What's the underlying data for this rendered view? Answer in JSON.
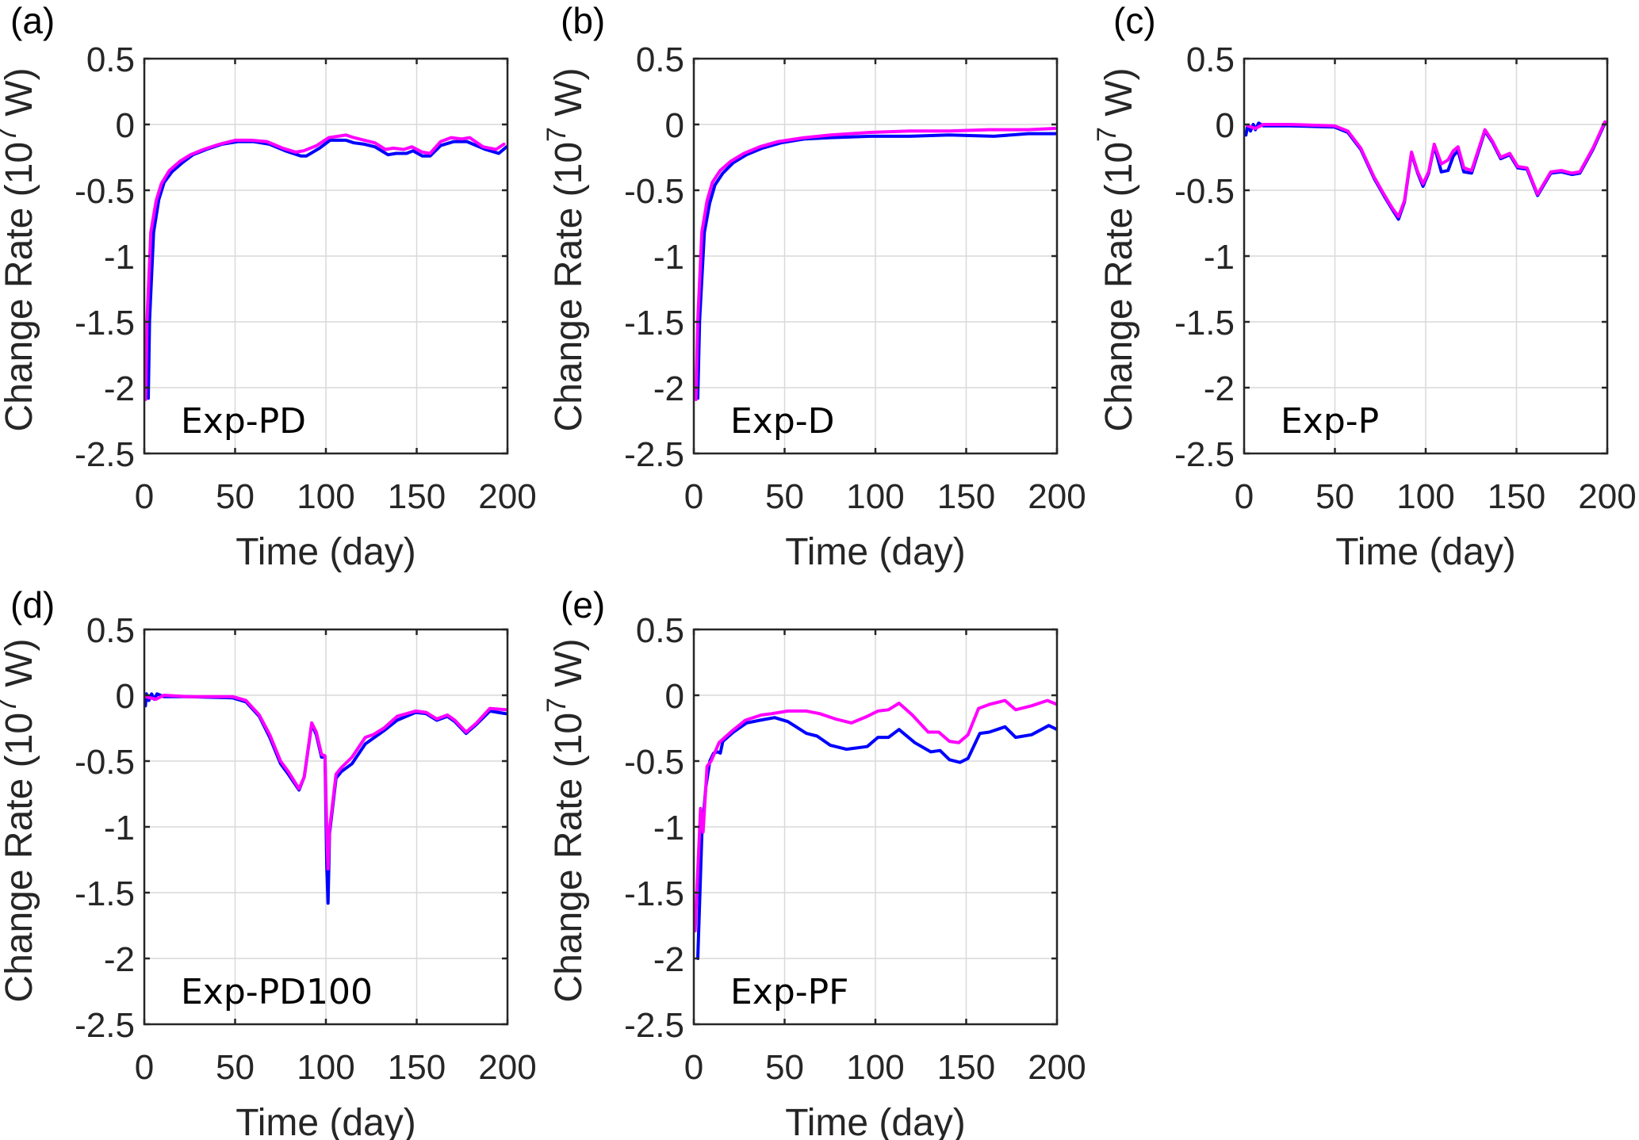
{
  "figure": {
    "panels": [
      {
        "letter": "(a)",
        "experiment": "Exp-PD"
      },
      {
        "letter": "(b)",
        "experiment": "Exp-D"
      },
      {
        "letter": "(c)",
        "experiment": "Exp-P"
      },
      {
        "letter": "(d)",
        "experiment": "Exp-PD100"
      },
      {
        "letter": "(e)",
        "experiment": "Exp-PF"
      }
    ],
    "colors": {
      "blue_series": "#0000ff",
      "magenta_series": "#ff00ff"
    }
  },
  "chart_data": [
    {
      "type": "line",
      "panel": "(a)",
      "annotation": "Exp-PD",
      "title": "",
      "xlabel": "Time (day)",
      "ylabel": "Change Rate (10^7 W)",
      "ylabel_parts": {
        "pre": "Change Rate (10",
        "sup": "7",
        "post": " W)"
      },
      "xlim": [
        0,
        200
      ],
      "ylim": [
        -2.5,
        0.5
      ],
      "xticks": [
        0,
        50,
        100,
        150,
        200
      ],
      "xtick_labels": [
        "0",
        "50",
        "100",
        "150",
        "200"
      ],
      "yticks": [
        0.5,
        0,
        -0.5,
        -1,
        -1.5,
        -2,
        -2.5
      ],
      "ytick_labels": [
        "0.5",
        "0",
        "-0.5",
        "-1",
        "-1.5",
        "-2",
        "-2.5"
      ],
      "grid": true,
      "legend": "none",
      "series": [
        {
          "name": "blue",
          "color": "#0000ff",
          "x": [
            2.2,
            2.9,
            5.1,
            8,
            10.9,
            15.2,
            21,
            26.8,
            34.1,
            42.8,
            51.5,
            60.2,
            68.9,
            77.6,
            86.3,
            89.2,
            96.5,
            102.3,
            111,
            115.4,
            121.2,
            127,
            134.2,
            138.6,
            144.4,
            148,
            153.1,
            157.4,
            163.2,
            170.5,
            177.7,
            187.9,
            195.2,
            199.5
          ],
          "y": [
            -2.08,
            -1.49,
            -0.82,
            -0.57,
            -0.44,
            -0.36,
            -0.29,
            -0.23,
            -0.19,
            -0.15,
            -0.13,
            -0.13,
            -0.15,
            -0.2,
            -0.24,
            -0.24,
            -0.18,
            -0.12,
            -0.12,
            -0.14,
            -0.15,
            -0.17,
            -0.23,
            -0.22,
            -0.22,
            -0.2,
            -0.24,
            -0.24,
            -0.16,
            -0.13,
            -0.13,
            -0.19,
            -0.22,
            -0.17
          ]
        },
        {
          "name": "magenta",
          "color": "#ff00ff",
          "x": [
            0.7,
            1.5,
            3.6,
            6.5,
            9.4,
            13.8,
            19.6,
            25.4,
            32.6,
            41.4,
            50.1,
            58.8,
            67.5,
            76.2,
            83.4,
            87.8,
            95,
            101.6,
            106.7,
            111,
            115.4,
            121.2,
            127,
            132.8,
            137.1,
            142.9,
            147.3,
            153.1,
            157.4,
            163.2,
            169,
            174.8,
            179.2,
            186.5,
            193.7,
            198
          ],
          "y": [
            -2.09,
            -1.49,
            -0.82,
            -0.58,
            -0.45,
            -0.35,
            -0.28,
            -0.23,
            -0.19,
            -0.15,
            -0.12,
            -0.12,
            -0.13,
            -0.18,
            -0.21,
            -0.2,
            -0.16,
            -0.1,
            -0.09,
            -0.08,
            -0.1,
            -0.12,
            -0.14,
            -0.19,
            -0.18,
            -0.19,
            -0.17,
            -0.21,
            -0.22,
            -0.13,
            -0.1,
            -0.11,
            -0.1,
            -0.17,
            -0.19,
            -0.15
          ]
        }
      ]
    },
    {
      "type": "line",
      "panel": "(b)",
      "annotation": "Exp-D",
      "title": "",
      "xlabel": "Time (day)",
      "ylabel": "Change Rate (10^7 W)",
      "ylabel_parts": {
        "pre": "Change Rate (10",
        "sup": "7",
        "post": " W)"
      },
      "xlim": [
        0,
        200
      ],
      "ylim": [
        -2.5,
        0.5
      ],
      "xticks": [
        0,
        50,
        100,
        150,
        200
      ],
      "xtick_labels": [
        "0",
        "50",
        "100",
        "150",
        "200"
      ],
      "yticks": [
        0.5,
        0,
        -0.5,
        -1,
        -1.5,
        -2,
        -2.5
      ],
      "ytick_labels": [
        "0.5",
        "0",
        "-0.5",
        "-1",
        "-1.5",
        "-2",
        "-2.5"
      ],
      "grid": true,
      "legend": "none",
      "series": [
        {
          "name": "blue",
          "color": "#0000ff",
          "x": [
            2.2,
            3.2,
            5.8,
            8.7,
            11.6,
            16,
            21.8,
            29,
            37.7,
            47.9,
            60.9,
            75.4,
            97.2,
            118.9,
            140.7,
            165.3,
            184.2,
            199.4
          ],
          "y": [
            -2.08,
            -1.49,
            -0.82,
            -0.6,
            -0.46,
            -0.37,
            -0.29,
            -0.23,
            -0.18,
            -0.14,
            -0.11,
            -0.1,
            -0.09,
            -0.09,
            -0.08,
            -0.09,
            -0.07,
            -0.07
          ]
        },
        {
          "name": "magenta",
          "color": "#ff00ff",
          "x": [
            1.2,
            2.2,
            4.4,
            7.3,
            10.2,
            14.5,
            20.3,
            27.6,
            36.3,
            46.4,
            60.9,
            75.4,
            97.2,
            118.9,
            140.7,
            162.4,
            184.2,
            198.7
          ],
          "y": [
            -2.09,
            -1.49,
            -0.82,
            -0.58,
            -0.44,
            -0.35,
            -0.28,
            -0.22,
            -0.17,
            -0.13,
            -0.1,
            -0.08,
            -0.06,
            -0.05,
            -0.05,
            -0.04,
            -0.04,
            -0.03
          ]
        }
      ]
    },
    {
      "type": "line",
      "panel": "(c)",
      "annotation": "Exp-P",
      "title": "",
      "xlabel": "Time (day)",
      "ylabel": "Change Rate (10^7 W)",
      "ylabel_parts": {
        "pre": "Change Rate (10",
        "sup": "7",
        "post": " W)"
      },
      "xlim": [
        0,
        200
      ],
      "ylim": [
        -2.5,
        0.5
      ],
      "xticks": [
        0,
        50,
        100,
        150,
        200
      ],
      "xtick_labels": [
        "0",
        "50",
        "100",
        "150",
        "200"
      ],
      "yticks": [
        0.5,
        0,
        -0.5,
        -1,
        -1.5,
        -2,
        -2.5
      ],
      "ytick_labels": [
        "0.5",
        "0",
        "-0.5",
        "-1",
        "-1.5",
        "-2",
        "-2.5"
      ],
      "grid": true,
      "legend": "none",
      "series": [
        {
          "name": "blue",
          "color": "#0000ff",
          "x": [
            1.0,
            1.9,
            3.5,
            5.0,
            6.2,
            8.0,
            10.6,
            25.1,
            49.8,
            57.1,
            64.3,
            71.6,
            77.4,
            81.8,
            85,
            88.3,
            92.2,
            95.6,
            98.5,
            101.6,
            104.7,
            108.6,
            112.3,
            115.2,
            117.8,
            121,
            125.3,
            132.6,
            136.9,
            141.3,
            146.3,
            150.7,
            155.8,
            161.6,
            168.9,
            174.7,
            180.5,
            184.9,
            192.1,
            198.7
          ],
          "y": [
            -0.08,
            -0.01,
            -0.05,
            0.0,
            -0.04,
            0.01,
            -0.01,
            -0.01,
            -0.02,
            -0.06,
            -0.19,
            -0.41,
            -0.55,
            -0.65,
            -0.72,
            -0.59,
            -0.22,
            -0.37,
            -0.47,
            -0.37,
            -0.16,
            -0.36,
            -0.35,
            -0.24,
            -0.2,
            -0.36,
            -0.37,
            -0.05,
            -0.14,
            -0.26,
            -0.23,
            -0.33,
            -0.34,
            -0.54,
            -0.37,
            -0.36,
            -0.38,
            -0.37,
            -0.19,
            0.01
          ]
        },
        {
          "name": "magenta",
          "color": "#ff00ff",
          "x": [
            1.9,
            6.2,
            10.6,
            25.1,
            49.8,
            57.1,
            64.3,
            71.6,
            77.4,
            81.8,
            85,
            88.3,
            92.2,
            95.6,
            98.5,
            101.6,
            104.7,
            108.6,
            112.3,
            115.2,
            117.8,
            121,
            125.3,
            132.6,
            136.9,
            141.3,
            146.3,
            150.7,
            155.8,
            161.6,
            168.9,
            174.7,
            180.5,
            184.9,
            192.1,
            198.7
          ],
          "y": [
            -0.01,
            -0.03,
            0.0,
            0.0,
            -0.01,
            -0.05,
            -0.18,
            -0.4,
            -0.54,
            -0.64,
            -0.7,
            -0.58,
            -0.21,
            -0.36,
            -0.45,
            -0.36,
            -0.15,
            -0.3,
            -0.27,
            -0.2,
            -0.17,
            -0.33,
            -0.35,
            -0.04,
            -0.13,
            -0.25,
            -0.22,
            -0.32,
            -0.33,
            -0.53,
            -0.36,
            -0.35,
            -0.37,
            -0.36,
            -0.18,
            0.02
          ]
        }
      ]
    },
    {
      "type": "line",
      "panel": "(d)",
      "annotation": "Exp-PD100",
      "title": "",
      "xlabel": "Time (day)",
      "ylabel": "Change Rate (10^7 W)",
      "ylabel_parts": {
        "pre": "Change Rate (10",
        "sup": "7",
        "post": " W)"
      },
      "xlim": [
        0,
        200
      ],
      "ylim": [
        -2.5,
        0.5
      ],
      "xticks": [
        0,
        50,
        100,
        150,
        200
      ],
      "xtick_labels": [
        "0",
        "50",
        "100",
        "150",
        "200"
      ],
      "yticks": [
        0.5,
        0,
        -0.5,
        -1,
        -1.5,
        -2,
        -2.5
      ],
      "ytick_labels": [
        "0.5",
        "0",
        "-0.5",
        "-1",
        "-1.5",
        "-2",
        "-2.5"
      ],
      "grid": true,
      "legend": "none",
      "series": [
        {
          "name": "blue",
          "color": "#0000ff",
          "x": [
            0.6,
            1.2,
            2.5,
            4.0,
            5.5,
            7.0,
            10.8,
            23.9,
            48.7,
            56,
            63.3,
            69.1,
            75,
            79.3,
            85.2,
            88.1,
            92.2,
            94.7,
            97.6,
            99.5,
            100.5,
            101.2,
            102.0,
            105.6,
            108.5,
            114.4,
            121.7,
            131.9,
            139.2,
            149.4,
            155.2,
            161.1,
            166.9,
            171,
            177.2,
            183,
            190.3,
            199
          ],
          "y": [
            -0.08,
            0.01,
            -0.04,
            0.01,
            -0.03,
            0.01,
            -0.01,
            -0.01,
            -0.02,
            -0.05,
            -0.16,
            -0.32,
            -0.52,
            -0.6,
            -0.72,
            -0.62,
            -0.22,
            -0.3,
            -0.47,
            -0.47,
            -1.3,
            -1.58,
            -1.05,
            -0.63,
            -0.58,
            -0.52,
            -0.37,
            -0.27,
            -0.19,
            -0.13,
            -0.14,
            -0.19,
            -0.16,
            -0.2,
            -0.29,
            -0.22,
            -0.12,
            -0.14
          ]
        },
        {
          "name": "magenta",
          "color": "#ff00ff",
          "x": [
            0.6,
            6.4,
            10.8,
            23.9,
            48.7,
            56,
            63.3,
            69.1,
            75,
            79.3,
            85.2,
            88.1,
            92.2,
            94.7,
            97.6,
            99.5,
            100.5,
            101.2,
            102.0,
            105.6,
            108.5,
            114.4,
            121.7,
            126,
            131.9,
            139.2,
            149.4,
            155.2,
            161.1,
            166.9,
            171,
            177.2,
            183,
            190.3,
            199
          ],
          "y": [
            -0.01,
            -0.03,
            0.0,
            -0.01,
            -0.01,
            -0.04,
            -0.15,
            -0.3,
            -0.5,
            -0.58,
            -0.71,
            -0.62,
            -0.21,
            -0.28,
            -0.45,
            -0.46,
            -1.02,
            -1.32,
            -1.02,
            -0.6,
            -0.55,
            -0.47,
            -0.32,
            -0.3,
            -0.25,
            -0.16,
            -0.12,
            -0.13,
            -0.18,
            -0.15,
            -0.19,
            -0.28,
            -0.21,
            -0.1,
            -0.11
          ]
        }
      ]
    },
    {
      "type": "line",
      "panel": "(e)",
      "annotation": "Exp-PF",
      "title": "",
      "xlabel": "Time (day)",
      "ylabel": "Change Rate (10^7 W)",
      "ylabel_parts": {
        "pre": "Change Rate (10",
        "sup": "7",
        "post": " W)"
      },
      "xlim": [
        0,
        200
      ],
      "ylim": [
        -2.5,
        0.5
      ],
      "xticks": [
        0,
        50,
        100,
        150,
        200
      ],
      "xtick_labels": [
        "0",
        "50",
        "100",
        "150",
        "200"
      ],
      "yticks": [
        0.5,
        0,
        -0.5,
        -1,
        -1.5,
        -2,
        -2.5
      ],
      "ytick_labels": [
        "0.5",
        "0",
        "-0.5",
        "-1",
        "-1.5",
        "-2",
        "-2.5"
      ],
      "grid": true,
      "legend": "none",
      "series": [
        {
          "name": "blue",
          "color": "#0000ff",
          "x": [
            2.2,
            4.4,
            6.6,
            8.8,
            10.9,
            13.1,
            14.6,
            16,
            21.8,
            29.1,
            36.4,
            44.5,
            51.8,
            62,
            67.9,
            75.2,
            84,
            95.5,
            101.4,
            107.2,
            113,
            121.7,
            130.5,
            135.6,
            140.8,
            146.6,
            151,
            157.5,
            162.7,
            171.4,
            177.2,
            186,
            195.5,
            200
          ],
          "y": [
            -2.0,
            -1.06,
            -0.7,
            -0.5,
            -0.44,
            -0.43,
            -0.44,
            -0.35,
            -0.28,
            -0.21,
            -0.19,
            -0.17,
            -0.2,
            -0.29,
            -0.31,
            -0.38,
            -0.41,
            -0.39,
            -0.32,
            -0.32,
            -0.26,
            -0.36,
            -0.43,
            -0.42,
            -0.49,
            -0.51,
            -0.48,
            -0.29,
            -0.28,
            -0.24,
            -0.32,
            -0.3,
            -0.23,
            -0.26
          ]
        },
        {
          "name": "magenta",
          "color": "#ff00ff",
          "x": [
            0.7,
            3.7,
            5.1,
            7.3,
            9.5,
            13.9,
            21.2,
            28.4,
            37.2,
            43,
            51.8,
            62,
            69.3,
            78,
            86.8,
            95.5,
            101.4,
            107.2,
            113,
            120.3,
            129.1,
            134.9,
            140.8,
            145.9,
            151,
            156.8,
            162.7,
            171.4,
            177.2,
            186,
            194.7,
            200
          ],
          "y": [
            -1.79,
            -0.86,
            -1.04,
            -0.54,
            -0.5,
            -0.36,
            -0.27,
            -0.19,
            -0.15,
            -0.14,
            -0.12,
            -0.12,
            -0.14,
            -0.18,
            -0.21,
            -0.16,
            -0.12,
            -0.11,
            -0.06,
            -0.15,
            -0.28,
            -0.28,
            -0.35,
            -0.36,
            -0.3,
            -0.1,
            -0.07,
            -0.04,
            -0.11,
            -0.08,
            -0.04,
            -0.07
          ]
        }
      ]
    }
  ]
}
